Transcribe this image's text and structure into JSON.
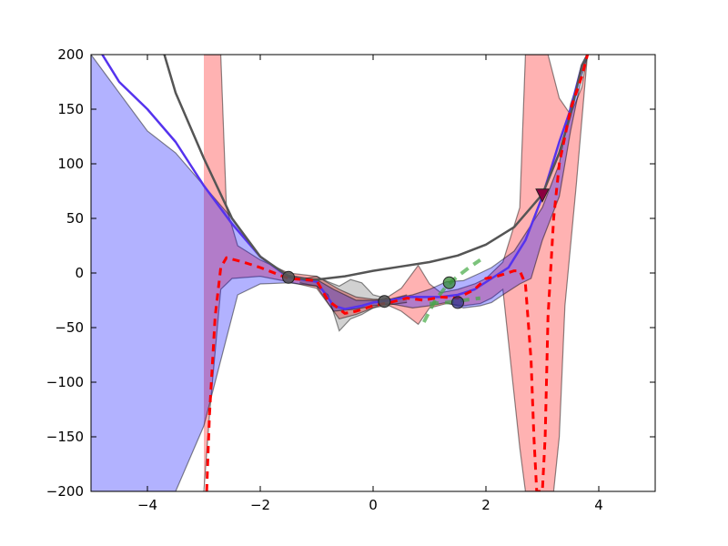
{
  "chart_data": {
    "type": "line",
    "title": "",
    "xlabel": "",
    "ylabel": "",
    "xlim": [
      -5,
      5
    ],
    "ylim": [
      -200,
      200
    ],
    "grid": false,
    "legend": "none",
    "x_ticks": [
      -4,
      -2,
      0,
      2,
      4
    ],
    "x_tick_labels": [
      "−4",
      "−2",
      "0",
      "2",
      "4"
    ],
    "y_ticks": [
      -200,
      -150,
      -100,
      -50,
      0,
      50,
      100,
      150,
      200
    ],
    "y_tick_labels": [
      "−200",
      "−150",
      "−100",
      "−50",
      "0",
      "50",
      "100",
      "150",
      "200"
    ],
    "bands": [
      {
        "color": "#ff0000",
        "opacity": 0.3,
        "upper": [
          [
            -3.0,
            200
          ],
          [
            -2.7,
            200
          ],
          [
            -2.6,
            60
          ],
          [
            -2.4,
            25
          ],
          [
            -2.0,
            12
          ],
          [
            -1.5,
            0
          ],
          [
            -1.0,
            -3
          ],
          [
            -0.6,
            -15
          ],
          [
            -0.3,
            -22
          ],
          [
            0.0,
            -24
          ],
          [
            0.2,
            -24
          ],
          [
            0.5,
            -14
          ],
          [
            0.8,
            7
          ],
          [
            1.0,
            -10
          ],
          [
            1.2,
            -18
          ],
          [
            1.5,
            -15
          ],
          [
            1.8,
            -10
          ],
          [
            2.0,
            -5
          ],
          [
            2.3,
            10
          ],
          [
            2.6,
            60
          ],
          [
            2.7,
            200
          ],
          [
            3.1,
            200
          ],
          [
            3.3,
            160
          ],
          [
            3.5,
            145
          ],
          [
            3.7,
            170
          ],
          [
            3.8,
            200
          ]
        ],
        "lower": [
          [
            -3.0,
            -200
          ],
          [
            -2.9,
            -130
          ],
          [
            -2.7,
            -15
          ],
          [
            -2.5,
            -5
          ],
          [
            -2.0,
            -3
          ],
          [
            -1.5,
            -8
          ],
          [
            -1.0,
            -14
          ],
          [
            -0.6,
            -42
          ],
          [
            -0.3,
            -38
          ],
          [
            0.0,
            -32
          ],
          [
            0.2,
            -28
          ],
          [
            0.5,
            -35
          ],
          [
            0.8,
            -47
          ],
          [
            1.0,
            -32
          ],
          [
            1.3,
            -28
          ],
          [
            1.6,
            -30
          ],
          [
            1.9,
            -28
          ],
          [
            2.1,
            -23
          ],
          [
            2.3,
            -15
          ],
          [
            2.6,
            -160
          ],
          [
            2.7,
            -200
          ],
          [
            3.2,
            -200
          ],
          [
            3.3,
            -150
          ],
          [
            3.4,
            -30
          ],
          [
            3.6,
            80
          ],
          [
            3.8,
            200
          ]
        ]
      },
      {
        "color": "#0000ff",
        "opacity": 0.3,
        "upper": [
          [
            -5.0,
            200
          ],
          [
            -4.0,
            130
          ],
          [
            -3.5,
            110
          ],
          [
            -3.0,
            80
          ],
          [
            -2.5,
            50
          ],
          [
            -2.0,
            15
          ],
          [
            -1.5,
            -2
          ],
          [
            -1.0,
            -6
          ],
          [
            -0.7,
            -15
          ],
          [
            -0.3,
            -25
          ],
          [
            0.0,
            -25
          ],
          [
            0.3,
            -24
          ],
          [
            0.7,
            -20
          ],
          [
            1.0,
            -15
          ],
          [
            1.3,
            -8
          ],
          [
            1.6,
            -7
          ],
          [
            1.9,
            0
          ],
          [
            2.1,
            5
          ],
          [
            2.5,
            20
          ],
          [
            3.0,
            60
          ],
          [
            3.3,
            100
          ],
          [
            3.5,
            155
          ],
          [
            3.7,
            185
          ],
          [
            3.8,
            200
          ]
        ],
        "lower": [
          [
            -5.0,
            -200
          ],
          [
            -3.5,
            -200
          ],
          [
            -3.0,
            -140
          ],
          [
            -2.7,
            -80
          ],
          [
            -2.4,
            -20
          ],
          [
            -2.0,
            -10
          ],
          [
            -1.5,
            -9
          ],
          [
            -1.0,
            -12
          ],
          [
            -0.7,
            -35
          ],
          [
            -0.3,
            -33
          ],
          [
            0.0,
            -30
          ],
          [
            0.3,
            -28
          ],
          [
            0.7,
            -32
          ],
          [
            1.0,
            -30
          ],
          [
            1.3,
            -27
          ],
          [
            1.6,
            -32
          ],
          [
            1.9,
            -30
          ],
          [
            2.1,
            -27
          ],
          [
            2.3,
            -20
          ],
          [
            2.6,
            -10
          ],
          [
            2.8,
            -5
          ],
          [
            3.0,
            30
          ],
          [
            3.3,
            70
          ],
          [
            3.5,
            130
          ],
          [
            3.7,
            180
          ],
          [
            3.8,
            200
          ]
        ]
      },
      {
        "color": "#000000",
        "opacity": 0.18,
        "upper": [
          [
            -1.3,
            -6
          ],
          [
            -1.0,
            -3
          ],
          [
            -0.8,
            -8
          ],
          [
            -0.6,
            -12
          ],
          [
            -0.4,
            -6
          ],
          [
            -0.2,
            -9
          ],
          [
            0.0,
            -20
          ],
          [
            0.3,
            -24
          ],
          [
            0.6,
            -20
          ]
        ],
        "lower": [
          [
            -1.3,
            -9
          ],
          [
            -1.0,
            -12
          ],
          [
            -0.8,
            -20
          ],
          [
            -0.6,
            -53
          ],
          [
            -0.4,
            -42
          ],
          [
            -0.2,
            -38
          ],
          [
            0.0,
            -32
          ],
          [
            0.3,
            -29
          ],
          [
            0.6,
            -27
          ]
        ]
      }
    ],
    "series": [
      {
        "color": "#5533ee",
        "width": 2.5,
        "dash": "",
        "points": [
          [
            -4.8,
            200
          ],
          [
            -4.5,
            175
          ],
          [
            -4.0,
            150
          ],
          [
            -3.5,
            120
          ],
          [
            -3.0,
            80
          ],
          [
            -2.5,
            45
          ],
          [
            -2.0,
            15
          ],
          [
            -1.5,
            -4
          ],
          [
            -1.0,
            -8
          ],
          [
            -0.7,
            -30
          ],
          [
            -0.5,
            -33
          ],
          [
            -0.2,
            -30
          ],
          [
            0.0,
            -27
          ],
          [
            0.3,
            -25
          ],
          [
            0.6,
            -22
          ],
          [
            0.9,
            -22
          ],
          [
            1.2,
            -22
          ],
          [
            1.5,
            -20
          ],
          [
            1.8,
            -15
          ],
          [
            2.1,
            -5
          ],
          [
            2.4,
            5
          ],
          [
            2.7,
            30
          ],
          [
            3.0,
            70
          ],
          [
            3.3,
            120
          ],
          [
            3.5,
            150
          ],
          [
            3.7,
            190
          ],
          [
            3.8,
            200
          ]
        ]
      },
      {
        "color": "#555555",
        "width": 2.5,
        "dash": "",
        "points": [
          [
            -3.7,
            200
          ],
          [
            -3.5,
            165
          ],
          [
            -3.0,
            105
          ],
          [
            -2.5,
            50
          ],
          [
            -2.0,
            15
          ],
          [
            -1.5,
            -3
          ],
          [
            -1.2,
            -6
          ],
          [
            -1.0,
            -6
          ],
          [
            -0.5,
            -3
          ],
          [
            0.0,
            2
          ],
          [
            0.5,
            6
          ],
          [
            1.0,
            10
          ],
          [
            1.5,
            16
          ],
          [
            2.0,
            26
          ],
          [
            2.5,
            42
          ],
          [
            3.0,
            72
          ],
          [
            3.3,
            110
          ],
          [
            3.5,
            145
          ],
          [
            3.7,
            190
          ],
          [
            3.8,
            200
          ]
        ]
      },
      {
        "color": "#ff0000",
        "width": 3,
        "dash": "8,6",
        "points": [
          [
            -2.95,
            -200
          ],
          [
            -2.9,
            -130
          ],
          [
            -2.8,
            -40
          ],
          [
            -2.7,
            5
          ],
          [
            -2.6,
            14
          ],
          [
            -2.3,
            10
          ],
          [
            -2.0,
            5
          ],
          [
            -1.5,
            -5
          ],
          [
            -1.0,
            -7
          ],
          [
            -0.8,
            -25
          ],
          [
            -0.5,
            -37
          ],
          [
            -0.3,
            -35
          ],
          [
            0.0,
            -30
          ],
          [
            0.3,
            -27
          ],
          [
            0.6,
            -23
          ],
          [
            0.9,
            -25
          ],
          [
            1.2,
            -22
          ],
          [
            1.5,
            -23
          ],
          [
            1.8,
            -15
          ],
          [
            2.0,
            -5
          ],
          [
            2.2,
            -3
          ],
          [
            2.5,
            2
          ],
          [
            2.6,
            2
          ],
          [
            2.7,
            -10
          ],
          [
            2.8,
            -80
          ],
          [
            2.85,
            -150
          ],
          [
            2.9,
            -200
          ],
          [
            3.0,
            -200
          ],
          [
            3.05,
            -150
          ],
          [
            3.1,
            -40
          ],
          [
            3.2,
            50
          ],
          [
            3.3,
            100
          ],
          [
            3.5,
            150
          ],
          [
            3.7,
            180
          ],
          [
            3.8,
            200
          ]
        ]
      },
      {
        "color": "#44aa44",
        "width": 4,
        "dash": "10,7",
        "opacity": 0.7,
        "points": [
          [
            0.9,
            -45
          ],
          [
            1.1,
            -25
          ],
          [
            1.3,
            -12
          ],
          [
            1.5,
            -3
          ],
          [
            1.7,
            5
          ],
          [
            1.9,
            12
          ]
        ]
      },
      {
        "color": "#44aa44",
        "width": 4,
        "dash": "10,7",
        "opacity": 0.7,
        "points": [
          [
            1.0,
            -28
          ],
          [
            1.3,
            -27
          ],
          [
            1.6,
            -25
          ],
          [
            1.9,
            -23
          ]
        ]
      }
    ],
    "markers": [
      {
        "shape": "circle",
        "x": -1.5,
        "y": -4,
        "color": "#555555",
        "opacity": 0.85
      },
      {
        "shape": "circle",
        "x": 0.2,
        "y": -26,
        "color": "#555555",
        "opacity": 0.85
      },
      {
        "shape": "circle",
        "x": 1.35,
        "y": -9,
        "color": "#338833",
        "opacity": 0.75
      },
      {
        "shape": "circle",
        "x": 1.5,
        "y": -27,
        "color": "#333388",
        "opacity": 0.75
      },
      {
        "shape": "triangle-down",
        "x": 3.0,
        "y": 71,
        "color": "#8b0040",
        "opacity": 1.0
      }
    ]
  }
}
